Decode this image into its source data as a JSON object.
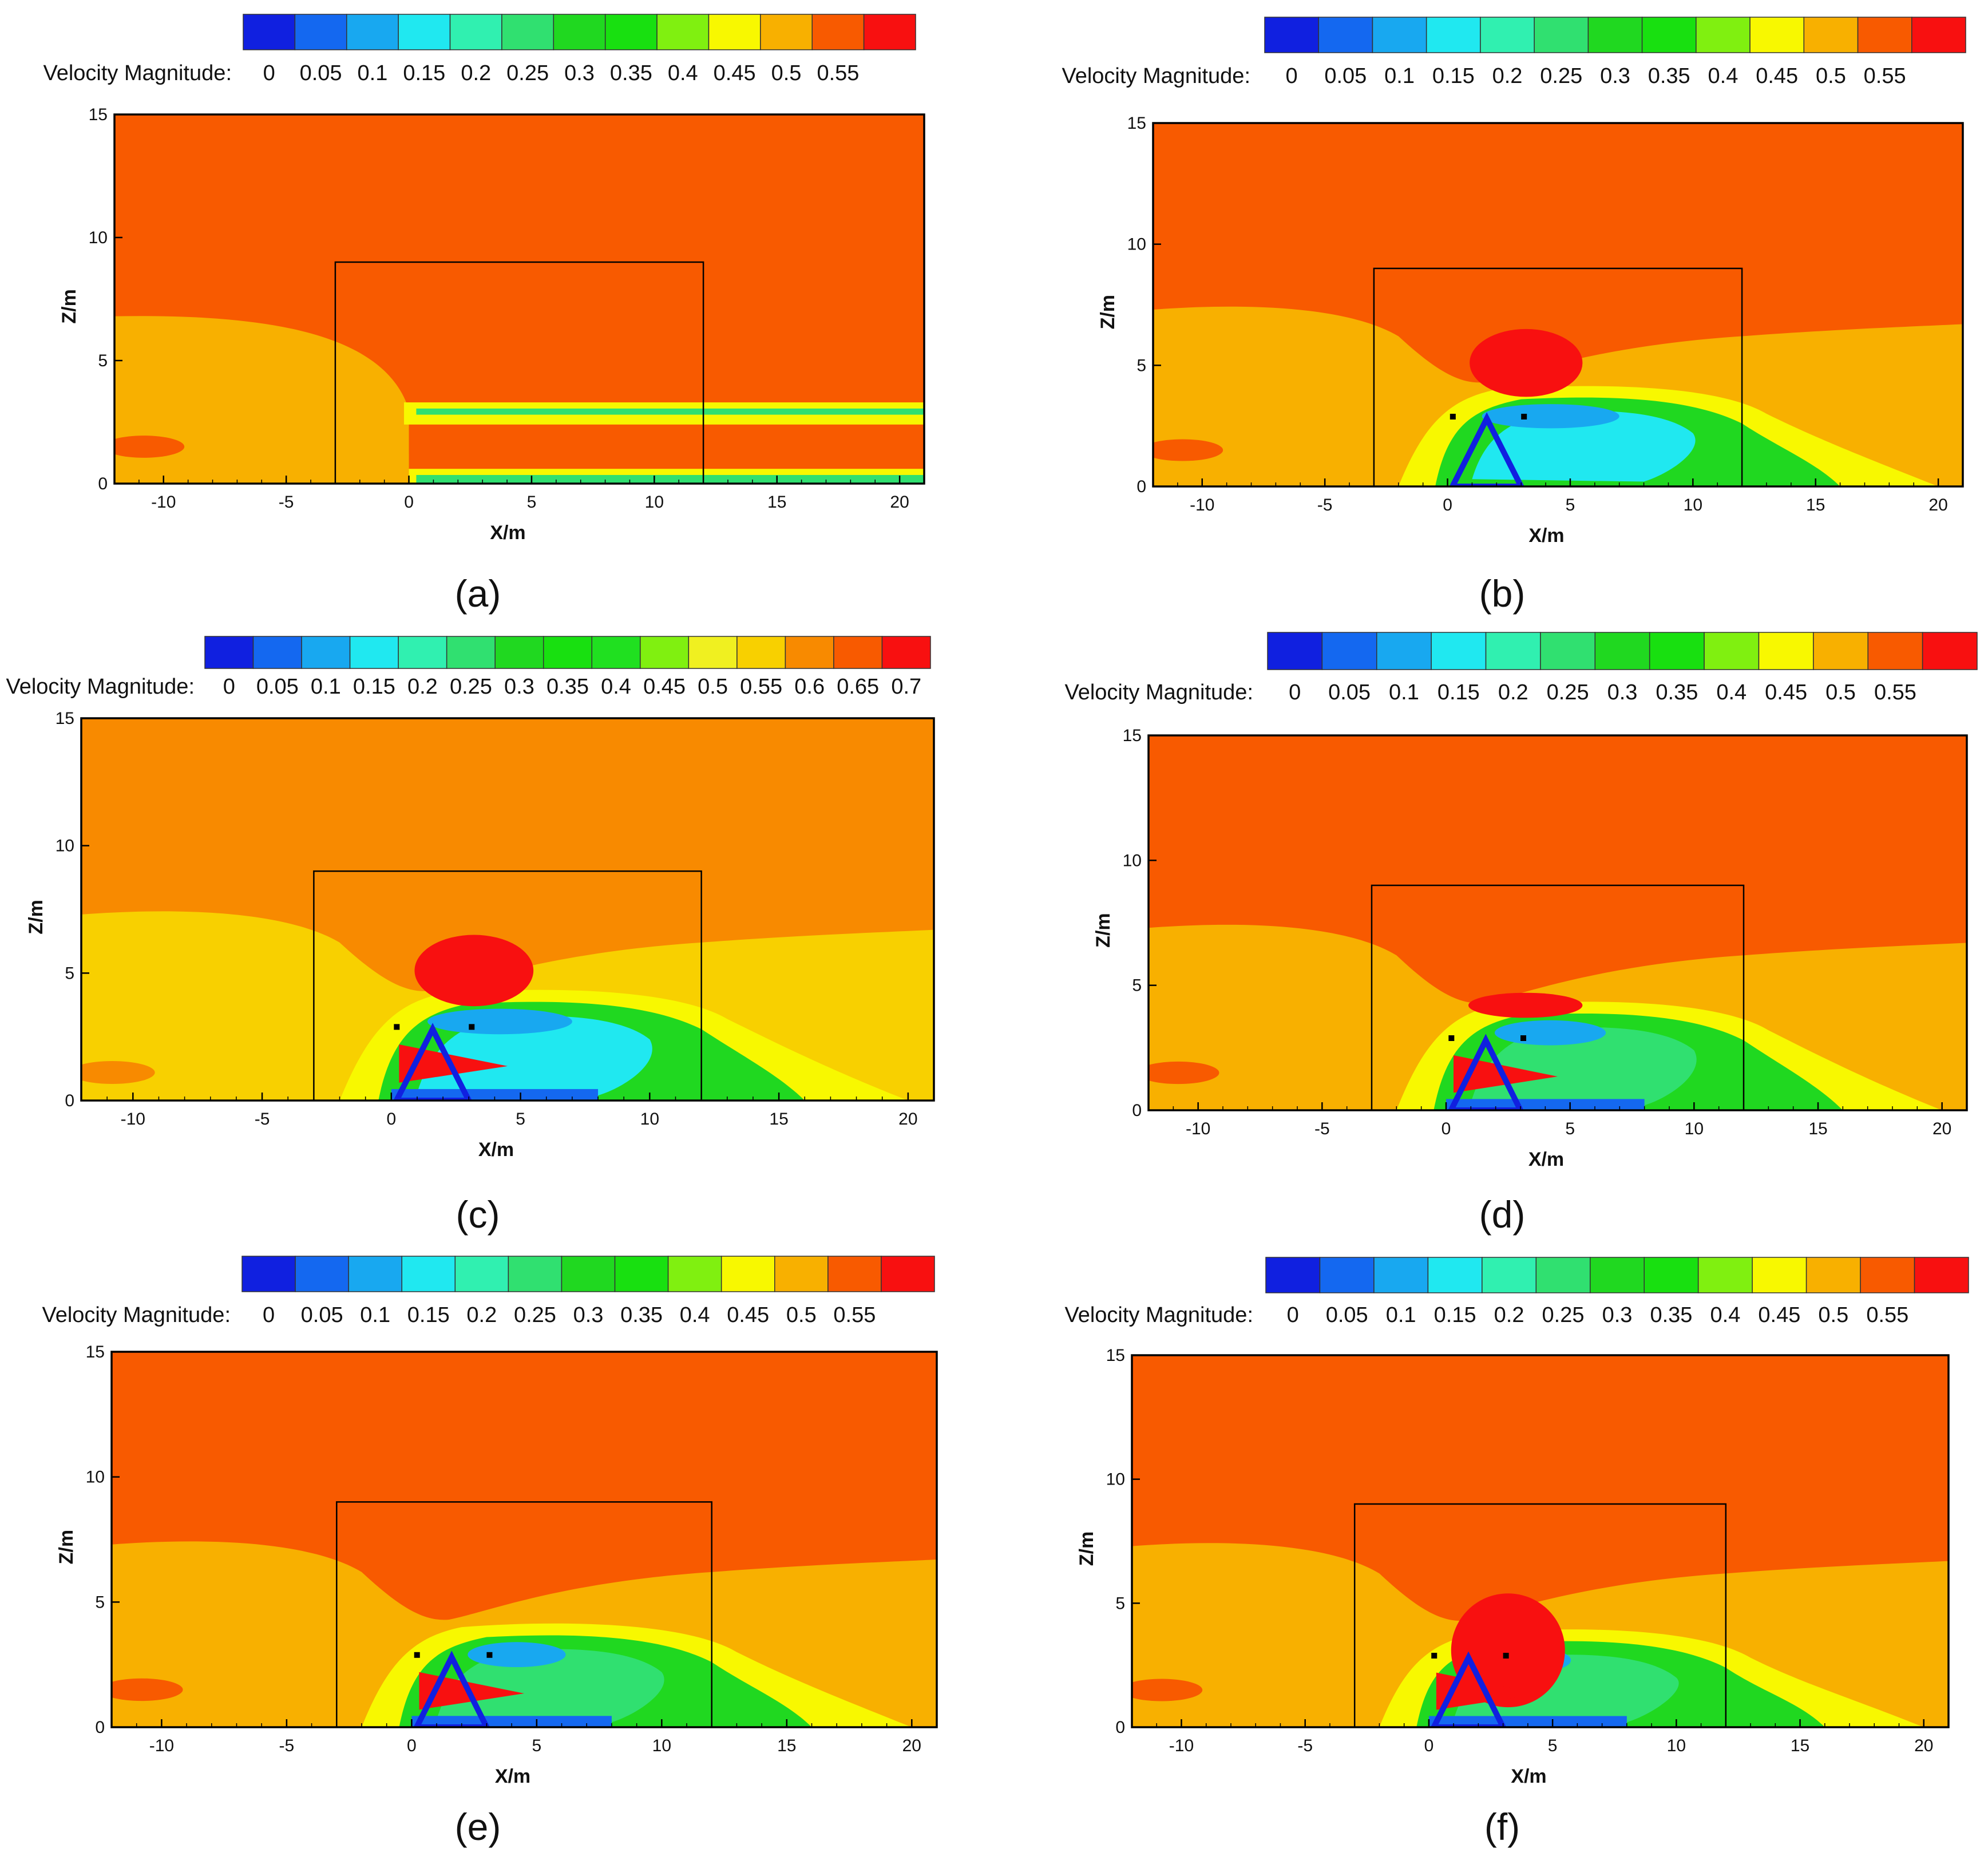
{
  "colorbar_label": "Velocity Magnitude:",
  "palette_13": [
    "#1020e0",
    "#1468f0",
    "#18a8f0",
    "#20e8f0",
    "#30f0b0",
    "#30e070",
    "#20d820",
    "#18e010",
    "#80f010",
    "#f8f800",
    "#f8b000",
    "#f85a00",
    "#f81010"
  ],
  "palette_15": [
    "#1020e0",
    "#1468f0",
    "#18a8f0",
    "#20e8f0",
    "#30f0b0",
    "#30e070",
    "#20d820",
    "#18e010",
    "#20e020",
    "#80f010",
    "#f0f020",
    "#f8d000",
    "#f88a00",
    "#f85a00",
    "#f81010"
  ],
  "colors": {
    "frame": "#000000",
    "domain_bg": "#f85a00",
    "domain_bg_c": "#f88a00",
    "wake_side": "#f8b000",
    "wake_side_c": "#f8d000"
  },
  "chart_data": [
    {
      "type": "heatmap",
      "panel_label": "(a)",
      "case": "no-structure",
      "colorbar_ticks": [
        "0",
        "0.05",
        "0.1",
        "0.15",
        "0.2",
        "0.25",
        "0.3",
        "0.35",
        "0.4",
        "0.45",
        "0.5",
        "0.55"
      ],
      "xlabel": "X/m",
      "ylabel": "Z/m",
      "xlim": [
        -12,
        21
      ],
      "ylim": [
        0,
        15
      ],
      "xticks": [
        "-10",
        "-5",
        "0",
        "5",
        "10",
        "15",
        "20"
      ],
      "yticks": [
        "0",
        "5",
        "10",
        "15"
      ],
      "box": {
        "x": [
          -3,
          12
        ],
        "z": [
          0,
          9
        ]
      },
      "wake": {
        "height": 3.0,
        "strength": 0.25,
        "bottom": 0.0
      }
    },
    {
      "type": "heatmap",
      "panel_label": "(b)",
      "case": "triangle",
      "colorbar_ticks": [
        "0",
        "0.05",
        "0.1",
        "0.15",
        "0.2",
        "0.25",
        "0.3",
        "0.35",
        "0.4",
        "0.45",
        "0.5",
        "0.55"
      ],
      "xlabel": "X/m",
      "ylabel": "Z/m",
      "xlim": [
        -12,
        21
      ],
      "ylim": [
        0,
        15
      ],
      "xticks": [
        "-10",
        "-5",
        "0",
        "5",
        "10",
        "15",
        "20"
      ],
      "yticks": [
        "0",
        "5",
        "10",
        "15"
      ],
      "box": {
        "x": [
          -3,
          12
        ],
        "z": [
          0,
          9
        ]
      },
      "wake": {
        "height": 4.0,
        "strength": 1.0,
        "bottom": 0.0,
        "jet": false,
        "cap": 6.2
      }
    },
    {
      "type": "heatmap",
      "panel_label": "(c)",
      "case": "triangle-jet",
      "colorbar_ticks": [
        "0",
        "0.05",
        "0.1",
        "0.15",
        "0.2",
        "0.25",
        "0.3",
        "0.35",
        "0.4",
        "0.45",
        "0.5",
        "0.55",
        "0.6",
        "0.65",
        "0.7"
      ],
      "xlabel": "X/m",
      "ylabel": "Z/m",
      "xlim": [
        -12,
        21
      ],
      "ylim": [
        0,
        15
      ],
      "xticks": [
        "-10",
        "-5",
        "0",
        "5",
        "10",
        "15",
        "20"
      ],
      "yticks": [
        "0",
        "5",
        "10",
        "15"
      ],
      "box": {
        "x": [
          -3,
          12
        ],
        "z": [
          0,
          9
        ]
      },
      "wake": {
        "height": 4.2,
        "strength": 1.0,
        "bottom": 0.0,
        "jet": true,
        "cap": 6.2
      }
    },
    {
      "type": "heatmap",
      "panel_label": "(d)",
      "case": "triangle-jet",
      "colorbar_ticks": [
        "0",
        "0.05",
        "0.1",
        "0.15",
        "0.2",
        "0.25",
        "0.3",
        "0.35",
        "0.4",
        "0.45",
        "0.5",
        "0.55"
      ],
      "xlabel": "X/m",
      "ylabel": "Z/m",
      "xlim": [
        -12,
        21
      ],
      "ylim": [
        0,
        15
      ],
      "xticks": [
        "-10",
        "-5",
        "0",
        "5",
        "10",
        "15",
        "20"
      ],
      "yticks": [
        "0",
        "5",
        "10",
        "15"
      ],
      "box": {
        "x": [
          -3,
          12
        ],
        "z": [
          0,
          9
        ]
      },
      "wake": {
        "height": 4.2,
        "strength": 0.8,
        "bottom": 0.0,
        "jet": true,
        "cap": 5.3
      }
    },
    {
      "type": "heatmap",
      "panel_label": "(e)",
      "case": "triangle-jet",
      "colorbar_ticks": [
        "0",
        "0.05",
        "0.1",
        "0.15",
        "0.2",
        "0.25",
        "0.3",
        "0.35",
        "0.4",
        "0.45",
        "0.5",
        "0.55"
      ],
      "xlabel": "X/m",
      "ylabel": "Z/m",
      "xlim": [
        -12,
        21
      ],
      "ylim": [
        0,
        15
      ],
      "xticks": [
        "-10",
        "-5",
        "0",
        "5",
        "10",
        "15",
        "20"
      ],
      "yticks": [
        "0",
        "5",
        "10",
        "15"
      ],
      "box": {
        "x": [
          -3,
          12
        ],
        "z": [
          0,
          9
        ]
      },
      "wake": {
        "height": 4.0,
        "strength": 0.7,
        "bottom": 0.0,
        "jet": true,
        "cap": 4.8
      }
    },
    {
      "type": "heatmap",
      "panel_label": "(f)",
      "case": "triangle-jet",
      "colorbar_ticks": [
        "0",
        "0.05",
        "0.1",
        "0.15",
        "0.2",
        "0.25",
        "0.3",
        "0.35",
        "0.4",
        "0.45",
        "0.5",
        "0.55"
      ],
      "xlabel": "X/m",
      "ylabel": "Z/m",
      "xlim": [
        -12,
        21
      ],
      "ylim": [
        0,
        15
      ],
      "xticks": [
        "-10",
        "-5",
        "0",
        "5",
        "10",
        "15",
        "20"
      ],
      "yticks": [
        "0",
        "5",
        "10",
        "15"
      ],
      "box": {
        "x": [
          -3,
          12
        ],
        "z": [
          0,
          9
        ]
      },
      "wake": {
        "height": 3.8,
        "strength": 0.55,
        "bottom": 0.0,
        "jet": true,
        "cap": 4.2
      }
    }
  ]
}
